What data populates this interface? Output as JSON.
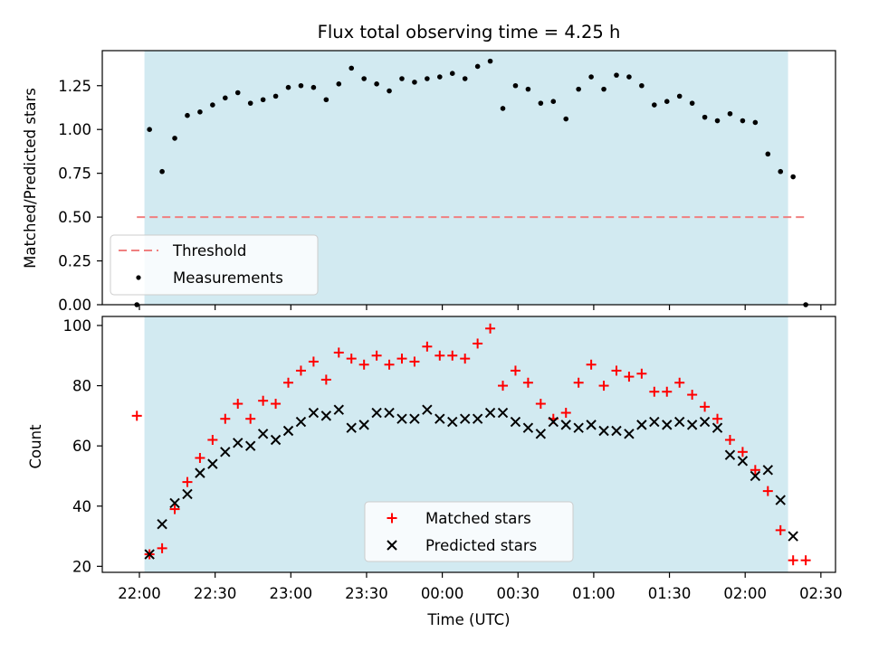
{
  "chart_data": [
    {
      "type": "scatter",
      "title": "Flux total observing time = 4.25 h",
      "xlabel": "",
      "ylabel": "Matched/Predicted stars",
      "ylim": [
        0,
        1.45
      ],
      "yticks": [
        "0.00",
        "0.25",
        "0.50",
        "0.75",
        "1.00",
        "1.25"
      ],
      "ytick_values": [
        0,
        0.25,
        0.5,
        0.75,
        1.0,
        1.25
      ],
      "threshold": {
        "name": "Threshold",
        "value": 0.5,
        "color": "#f08080"
      },
      "series": [
        {
          "name": "Measurements",
          "color": "#000000",
          "x": [
            "21:59",
            "22:04",
            "22:09",
            "22:14",
            "22:19",
            "22:24",
            "22:29",
            "22:34",
            "22:39",
            "22:44",
            "22:49",
            "22:54",
            "22:59",
            "23:04",
            "23:09",
            "23:14",
            "23:19",
            "23:24",
            "23:29",
            "23:34",
            "23:39",
            "23:44",
            "23:49",
            "23:54",
            "23:59",
            "00:04",
            "00:09",
            "00:14",
            "00:19",
            "00:24",
            "00:29",
            "00:34",
            "00:39",
            "00:44",
            "00:49",
            "00:54",
            "00:59",
            "01:04",
            "01:09",
            "01:14",
            "01:19",
            "01:24",
            "01:29",
            "01:34",
            "01:39",
            "01:44",
            "01:49",
            "01:54",
            "01:59",
            "02:04",
            "02:09",
            "02:14",
            "02:19",
            "02:24"
          ],
          "y": [
            0.0,
            1.0,
            0.76,
            0.95,
            1.08,
            1.1,
            1.14,
            1.18,
            1.21,
            1.15,
            1.17,
            1.19,
            1.24,
            1.25,
            1.24,
            1.17,
            1.26,
            1.35,
            1.29,
            1.26,
            1.22,
            1.29,
            1.27,
            1.29,
            1.3,
            1.32,
            1.29,
            1.36,
            1.39,
            1.12,
            1.25,
            1.23,
            1.15,
            1.16,
            1.06,
            1.23,
            1.3,
            1.23,
            1.31,
            1.3,
            1.25,
            1.14,
            1.16,
            1.19,
            1.15,
            1.07,
            1.05,
            1.09,
            1.05,
            1.04,
            0.86,
            0.76,
            0.73,
            0.0
          ]
        }
      ],
      "legend": [
        "Threshold",
        "Measurements"
      ],
      "legend_position": "lower-left",
      "shaded_interval": {
        "start": "22:02",
        "end": "02:17",
        "color": "#add8e6"
      }
    },
    {
      "type": "scatter",
      "title": "",
      "xlabel": "Time (UTC)",
      "ylabel": "Count",
      "ylim": [
        18,
        103
      ],
      "yticks": [
        "20",
        "40",
        "60",
        "80",
        "100"
      ],
      "ytick_values": [
        20,
        40,
        60,
        80,
        100
      ],
      "xticks": [
        "22:00",
        "22:30",
        "23:00",
        "23:30",
        "00:00",
        "00:30",
        "01:00",
        "01:30",
        "02:00",
        "02:30"
      ],
      "series": [
        {
          "name": "Matched stars",
          "color": "#ff0000",
          "marker": "+",
          "x": [
            "21:59",
            "22:04",
            "22:09",
            "22:14",
            "22:19",
            "22:24",
            "22:29",
            "22:34",
            "22:39",
            "22:44",
            "22:49",
            "22:54",
            "22:59",
            "23:04",
            "23:09",
            "23:14",
            "23:19",
            "23:24",
            "23:29",
            "23:34",
            "23:39",
            "23:44",
            "23:49",
            "23:54",
            "23:59",
            "00:04",
            "00:09",
            "00:14",
            "00:19",
            "00:24",
            "00:29",
            "00:34",
            "00:39",
            "00:44",
            "00:49",
            "00:54",
            "00:59",
            "01:04",
            "01:09",
            "01:14",
            "01:19",
            "01:24",
            "01:29",
            "01:34",
            "01:39",
            "01:44",
            "01:49",
            "01:54",
            "01:59",
            "02:04",
            "02:09",
            "02:14",
            "02:19",
            "02:24"
          ],
          "y": [
            70,
            24,
            26,
            39,
            48,
            56,
            62,
            69,
            74,
            69,
            75,
            74,
            81,
            85,
            88,
            82,
            91,
            89,
            87,
            90,
            87,
            89,
            88,
            93,
            90,
            90,
            89,
            94,
            99,
            80,
            85,
            81,
            74,
            69,
            71,
            81,
            87,
            80,
            85,
            83,
            84,
            78,
            78,
            81,
            77,
            73,
            69,
            62,
            58,
            52,
            45,
            32,
            22,
            22
          ]
        },
        {
          "name": "Predicted stars",
          "color": "#000000",
          "marker": "x",
          "x": [
            "22:04",
            "22:09",
            "22:14",
            "22:19",
            "22:24",
            "22:29",
            "22:34",
            "22:39",
            "22:44",
            "22:49",
            "22:54",
            "22:59",
            "23:04",
            "23:09",
            "23:14",
            "23:19",
            "23:24",
            "23:29",
            "23:34",
            "23:39",
            "23:44",
            "23:49",
            "23:54",
            "23:59",
            "00:04",
            "00:09",
            "00:14",
            "00:19",
            "00:24",
            "00:29",
            "00:34",
            "00:39",
            "00:44",
            "00:49",
            "00:54",
            "00:59",
            "01:04",
            "01:09",
            "01:14",
            "01:19",
            "01:24",
            "01:29",
            "01:34",
            "01:39",
            "01:44",
            "01:49",
            "01:54",
            "01:59",
            "02:04",
            "02:09",
            "02:14",
            "02:19"
          ],
          "y": [
            24,
            34,
            41,
            44,
            51,
            54,
            58,
            61,
            60,
            64,
            62,
            65,
            68,
            71,
            70,
            72,
            66,
            67,
            71,
            71,
            69,
            69,
            72,
            69,
            68,
            69,
            69,
            71,
            71,
            68,
            66,
            64,
            68,
            67,
            66,
            67,
            65,
            65,
            64,
            67,
            68,
            67,
            68,
            67,
            68,
            66,
            57,
            55,
            50,
            52,
            42,
            30
          ]
        }
      ],
      "legend": [
        "Matched stars",
        "Predicted stars"
      ],
      "legend_position": "lower-center",
      "shaded_interval": {
        "start": "22:02",
        "end": "02:17",
        "color": "#add8e6"
      }
    }
  ]
}
